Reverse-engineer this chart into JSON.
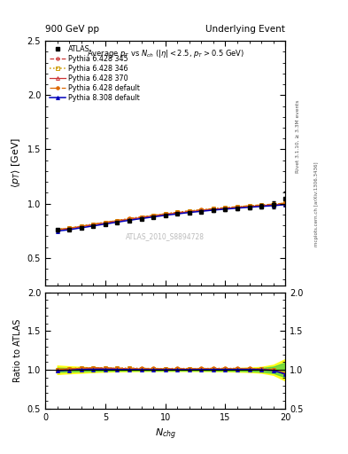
{
  "title_left": "900 GeV pp",
  "title_right": "Underlying Event",
  "plot_title": "Average $p_T$ vs $N_{ch}$ ($|\\eta| < 2.5$, $p_T > 0.5$ GeV)",
  "xlabel": "$N_{chg}$",
  "ylabel_main": "$\\langle p_T \\rangle$ [GeV]",
  "ylabel_ratio": "Ratio to ATLAS",
  "right_label_top": "Rivet 3.1.10, ≥ 3.3M events",
  "right_label_bottom": "mcplots.cern.ch [arXiv:1306.3436]",
  "watermark": "ATLAS_2010_S8894728",
  "ylim_main": [
    0.25,
    2.5
  ],
  "ylim_ratio": [
    0.5,
    2.0
  ],
  "xlim": [
    0,
    20
  ],
  "nch": [
    1,
    2,
    3,
    4,
    5,
    6,
    7,
    8,
    9,
    10,
    11,
    12,
    13,
    14,
    15,
    16,
    17,
    18,
    19,
    20
  ],
  "atlas_data": [
    0.758,
    0.764,
    0.775,
    0.79,
    0.808,
    0.827,
    0.845,
    0.862,
    0.878,
    0.893,
    0.905,
    0.918,
    0.928,
    0.937,
    0.946,
    0.955,
    0.963,
    0.975,
    0.99,
    1.05
  ],
  "atlas_err": [
    0.012,
    0.009,
    0.008,
    0.007,
    0.007,
    0.007,
    0.007,
    0.007,
    0.007,
    0.008,
    0.008,
    0.009,
    0.01,
    0.01,
    0.011,
    0.013,
    0.016,
    0.022,
    0.035,
    0.065
  ],
  "p6_345": [
    0.76,
    0.772,
    0.79,
    0.808,
    0.825,
    0.842,
    0.858,
    0.874,
    0.889,
    0.903,
    0.917,
    0.929,
    0.94,
    0.95,
    0.959,
    0.968,
    0.975,
    0.983,
    0.99,
    1.0
  ],
  "p6_346": [
    0.763,
    0.775,
    0.793,
    0.811,
    0.829,
    0.845,
    0.861,
    0.877,
    0.892,
    0.906,
    0.92,
    0.932,
    0.943,
    0.953,
    0.962,
    0.971,
    0.979,
    0.987,
    0.994,
    1.004
  ],
  "p6_370": [
    0.758,
    0.77,
    0.788,
    0.806,
    0.823,
    0.84,
    0.856,
    0.872,
    0.887,
    0.901,
    0.914,
    0.927,
    0.938,
    0.948,
    0.957,
    0.966,
    0.974,
    0.982,
    0.989,
    0.998
  ],
  "p6_default": [
    0.763,
    0.775,
    0.793,
    0.811,
    0.829,
    0.846,
    0.863,
    0.879,
    0.894,
    0.908,
    0.922,
    0.934,
    0.945,
    0.955,
    0.964,
    0.973,
    0.981,
    0.989,
    0.996,
    1.006
  ],
  "p8_default": [
    0.748,
    0.76,
    0.778,
    0.795,
    0.813,
    0.83,
    0.847,
    0.863,
    0.878,
    0.893,
    0.906,
    0.919,
    0.93,
    0.941,
    0.95,
    0.959,
    0.967,
    0.975,
    0.982,
    0.991
  ],
  "band_yellow": [
    0.055,
    0.045,
    0.038,
    0.03,
    0.024,
    0.02,
    0.018,
    0.016,
    0.015,
    0.015,
    0.015,
    0.015,
    0.016,
    0.017,
    0.019,
    0.023,
    0.028,
    0.038,
    0.065,
    0.14
  ],
  "band_green": [
    0.028,
    0.023,
    0.019,
    0.015,
    0.012,
    0.01,
    0.009,
    0.009,
    0.008,
    0.008,
    0.008,
    0.009,
    0.009,
    0.01,
    0.011,
    0.013,
    0.017,
    0.024,
    0.042,
    0.095
  ],
  "color_345": "#cc3333",
  "color_346": "#cc9900",
  "color_370": "#cc3333",
  "color_default_p6": "#dd6600",
  "color_default_p8": "#0000bb",
  "color_atlas": "#000000",
  "legend_entries": [
    "ATLAS",
    "Pythia 6.428 345",
    "Pythia 6.428 346",
    "Pythia 6.428 370",
    "Pythia 6.428 default",
    "Pythia 8.308 default"
  ]
}
